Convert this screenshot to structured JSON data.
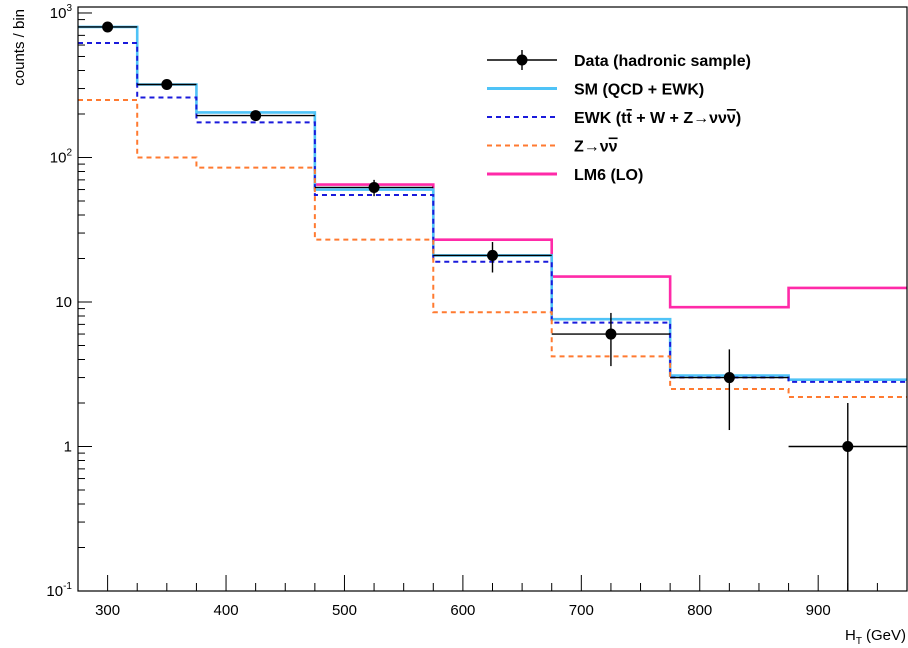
{
  "chart_data": {
    "type": "line",
    "title": "",
    "xlabel": "H",
    "xlabel_sub": "T",
    "xlabel_unit": "(GeV)",
    "ylabel": "counts / bin",
    "y_scale": "log",
    "xlim": [
      275,
      975
    ],
    "ylim": [
      0.1,
      1100
    ],
    "x_ticks": [
      300,
      400,
      500,
      600,
      700,
      800,
      900
    ],
    "y_ticks": [
      {
        "value": 0.1,
        "label": "10",
        "exp": "-1"
      },
      {
        "value": 1,
        "label": "1",
        "exp": ""
      },
      {
        "value": 10,
        "label": "10",
        "exp": ""
      },
      {
        "value": 100,
        "label": "10",
        "exp": "2"
      },
      {
        "value": 1000,
        "label": "10",
        "exp": "3"
      }
    ],
    "bin_edges": [
      275,
      325,
      375,
      475,
      575,
      675,
      775,
      875,
      975
    ],
    "grid": false,
    "legend_position": "top-right",
    "series": [
      {
        "name": "LM6 (LO)",
        "style": "step",
        "color": "#ff2aa8",
        "dash": "",
        "bins": [
          {
            "x0": 475,
            "x1": 575,
            "y": 65
          },
          {
            "x0": 575,
            "x1": 675,
            "y": 27
          },
          {
            "x0": 675,
            "x1": 775,
            "y": 15
          },
          {
            "x0": 775,
            "x1": 875,
            "y": 9.2
          },
          {
            "x0": 875,
            "x1": 975,
            "y": 12.5
          }
        ]
      },
      {
        "name": "SM (QCD + EWK)",
        "style": "step",
        "color": "#4fc3f7",
        "dash": "",
        "values": [
          800,
          320,
          205,
          60,
          21,
          7.6,
          3.1,
          2.9
        ]
      },
      {
        "name": "EWK (t",
        "name_bar": "t",
        "name_tail": " + W + Z→νν",
        "name_tail_bar": "ν",
        "name_close": ")",
        "style": "step",
        "color": "#1a1adb",
        "dash": "5,4",
        "values": [
          620,
          260,
          175,
          55,
          19,
          7.2,
          3.0,
          2.8
        ]
      },
      {
        "name": "Z→ν",
        "name_bar": "ν",
        "style": "step",
        "color": "#ff7a30",
        "dash": "5,4",
        "values": [
          250,
          100,
          85,
          27,
          8.5,
          4.2,
          2.5,
          2.2
        ]
      },
      {
        "name": "Data (hadronic sample)",
        "style": "points",
        "color": "#000000",
        "points": [
          {
            "x": 300,
            "xerr": 25,
            "y": 800,
            "ylo": 770,
            "yhi": 830
          },
          {
            "x": 350,
            "xerr": 25,
            "y": 320,
            "ylo": 302,
            "yhi": 338
          },
          {
            "x": 425,
            "xerr": 50,
            "y": 195,
            "ylo": 182,
            "yhi": 210
          },
          {
            "x": 525,
            "xerr": 50,
            "y": 62,
            "ylo": 54,
            "yhi": 70
          },
          {
            "x": 625,
            "xerr": 50,
            "y": 21,
            "ylo": 16,
            "yhi": 26
          },
          {
            "x": 725,
            "xerr": 50,
            "y": 6,
            "ylo": 3.6,
            "yhi": 8.4
          },
          {
            "x": 825,
            "xerr": 50,
            "y": 3,
            "ylo": 1.3,
            "yhi": 4.7
          },
          {
            "x": 925,
            "xerr": 50,
            "y": 1,
            "ylo": 0.1,
            "yhi": 2.0
          }
        ]
      }
    ]
  }
}
